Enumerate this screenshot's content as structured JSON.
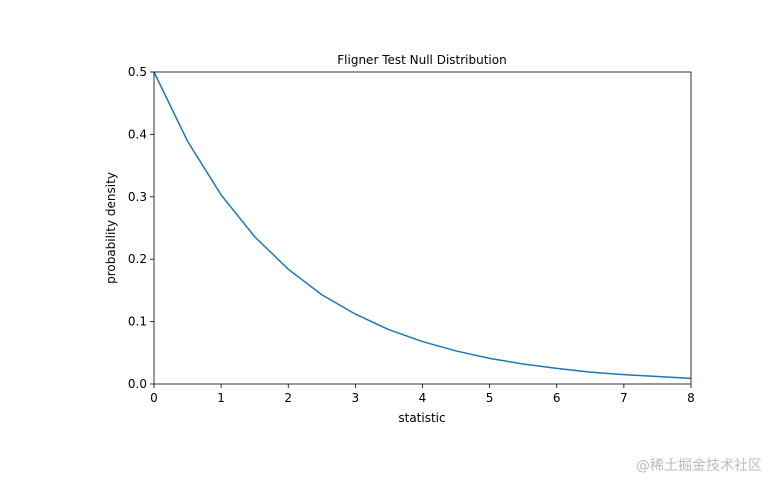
{
  "chart_data": {
    "type": "line",
    "title": "Fligner Test Null Distribution",
    "xlabel": "statistic",
    "ylabel": "probability density",
    "x": [
      0,
      0.5,
      1,
      1.5,
      2,
      2.5,
      3,
      3.5,
      4,
      4.5,
      5,
      5.5,
      6,
      6.5,
      7,
      7.5,
      8
    ],
    "series": [
      {
        "color": "#1f77b4",
        "values": [
          0.5,
          0.389,
          0.303,
          0.236,
          0.184,
          0.143,
          0.112,
          0.087,
          0.068,
          0.053,
          0.041,
          0.032,
          0.025,
          0.019,
          0.015,
          0.012,
          0.009
        ]
      }
    ],
    "xlim": [
      0,
      8
    ],
    "xticks": [
      0,
      1,
      2,
      3,
      4,
      5,
      6,
      7,
      8
    ],
    "ylim": [
      0,
      0.5
    ],
    "yticks": [
      {
        "value": 0,
        "label": "0.0"
      },
      0.1,
      0.2,
      0.3,
      0.4,
      0.5
    ],
    "grid": false
  },
  "watermark": "@稀土掘金技术社区"
}
